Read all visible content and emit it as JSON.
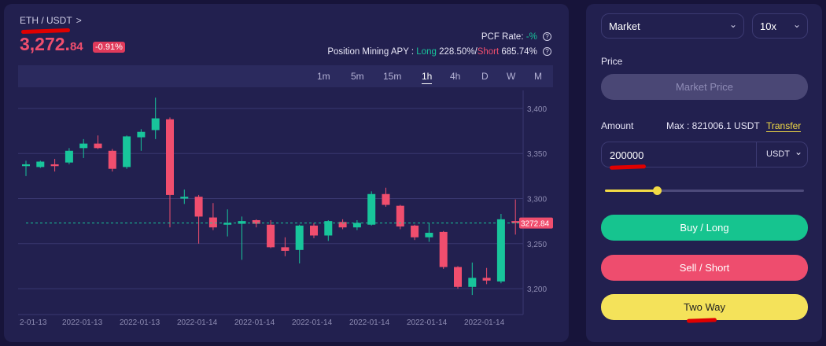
{
  "header": {
    "pair": "ETH / USDT",
    "pair_chevron": ">",
    "price_main": "3,272.",
    "price_dec": "84",
    "change": "-0.91%",
    "pcf_label": "PCF Rate:",
    "pcf_value": "-%",
    "apy_label": "Position Mining APY :",
    "apy_long_label": "Long",
    "apy_long_value": "228.50%",
    "apy_sep": "/",
    "apy_short_label": "Short",
    "apy_short_value": "685.74%",
    "help_icon": "?"
  },
  "timeframes": [
    "1m",
    "5m",
    "15m",
    "1h",
    "4h",
    "D",
    "W",
    "M"
  ],
  "active_timeframe": "1h",
  "chart_data": {
    "type": "candlestick",
    "ylim": [
      3180,
      3420
    ],
    "y_ticks": [
      "3,400",
      "3,350",
      "3,300",
      "3,250",
      "3,200"
    ],
    "y_tick_values": [
      3400,
      3350,
      3300,
      3250,
      3200
    ],
    "x_ticks": [
      "2-01-13",
      "2022-01-13",
      "2022-01-13",
      "2022-01-14",
      "2022-01-14",
      "2022-01-14",
      "2022-01-14",
      "2022-01-14",
      "2022-01-14"
    ],
    "last_price_label": "3272.84",
    "last_price": 3272.84,
    "colors": {
      "up": "#18c59b",
      "down": "#f04e6e"
    },
    "candles": [
      {
        "o": 3336,
        "c": 3338,
        "h": 3342,
        "l": 3325
      },
      {
        "o": 3335,
        "c": 3341,
        "h": 3342,
        "l": 3334
      },
      {
        "o": 3338,
        "c": 3336,
        "h": 3344,
        "l": 3330
      },
      {
        "o": 3340,
        "c": 3353,
        "h": 3356,
        "l": 3338
      },
      {
        "o": 3356,
        "c": 3361,
        "h": 3366,
        "l": 3345
      },
      {
        "o": 3361,
        "c": 3356,
        "h": 3370,
        "l": 3355
      },
      {
        "o": 3353,
        "c": 3333,
        "h": 3355,
        "l": 3330
      },
      {
        "o": 3335,
        "c": 3369,
        "h": 3370,
        "l": 3333
      },
      {
        "o": 3368,
        "c": 3374,
        "h": 3377,
        "l": 3353
      },
      {
        "o": 3376,
        "c": 3389,
        "h": 3412,
        "l": 3366
      },
      {
        "o": 3388,
        "c": 3304,
        "h": 3390,
        "l": 3268
      },
      {
        "o": 3300,
        "c": 3302,
        "h": 3310,
        "l": 3294
      },
      {
        "o": 3302,
        "c": 3280,
        "h": 3304,
        "l": 3250
      },
      {
        "o": 3279,
        "c": 3268,
        "h": 3295,
        "l": 3265
      },
      {
        "o": 3271,
        "c": 3273,
        "h": 3288,
        "l": 3258
      },
      {
        "o": 3272,
        "c": 3275,
        "h": 3280,
        "l": 3232
      },
      {
        "o": 3276,
        "c": 3272,
        "h": 3277,
        "l": 3268
      },
      {
        "o": 3271,
        "c": 3246,
        "h": 3276,
        "l": 3245
      },
      {
        "o": 3246,
        "c": 3242,
        "h": 3257,
        "l": 3236
      },
      {
        "o": 3243,
        "c": 3270,
        "h": 3271,
        "l": 3228
      },
      {
        "o": 3270,
        "c": 3259,
        "h": 3273,
        "l": 3256
      },
      {
        "o": 3259,
        "c": 3275,
        "h": 3276,
        "l": 3253
      },
      {
        "o": 3274,
        "c": 3268,
        "h": 3277,
        "l": 3266
      },
      {
        "o": 3268,
        "c": 3273,
        "h": 3276,
        "l": 3265
      },
      {
        "o": 3271,
        "c": 3305,
        "h": 3308,
        "l": 3270
      },
      {
        "o": 3305,
        "c": 3293,
        "h": 3312,
        "l": 3291
      },
      {
        "o": 3292,
        "c": 3269,
        "h": 3293,
        "l": 3266
      },
      {
        "o": 3270,
        "c": 3257,
        "h": 3271,
        "l": 3254
      },
      {
        "o": 3257,
        "c": 3262,
        "h": 3273,
        "l": 3252
      },
      {
        "o": 3263,
        "c": 3224,
        "h": 3264,
        "l": 3222
      },
      {
        "o": 3224,
        "c": 3202,
        "h": 3225,
        "l": 3200
      },
      {
        "o": 3202,
        "c": 3212,
        "h": 3229,
        "l": 3193
      },
      {
        "o": 3212,
        "c": 3209,
        "h": 3223,
        "l": 3205
      },
      {
        "o": 3208,
        "c": 3277,
        "h": 3283,
        "l": 3206
      },
      {
        "o": 3275,
        "c": 3273,
        "h": 3299,
        "l": 3260
      }
    ]
  },
  "order": {
    "order_type": "Market",
    "leverage": "10x",
    "price_label": "Price",
    "market_price_btn": "Market Price",
    "amount_label": "Amount",
    "max_label": "Max : 821006.1 USDT",
    "transfer_link": "Transfer",
    "amount_value": "200000",
    "amount_unit": "USDT",
    "slider_percent": 26,
    "buy_label": "Buy / Long",
    "sell_label": "Sell / Short",
    "twoway_label": "Two Way",
    "colors": {
      "buy": "#16c48f",
      "sell": "#ee4d6e",
      "twoway": "#f4e25a"
    }
  }
}
